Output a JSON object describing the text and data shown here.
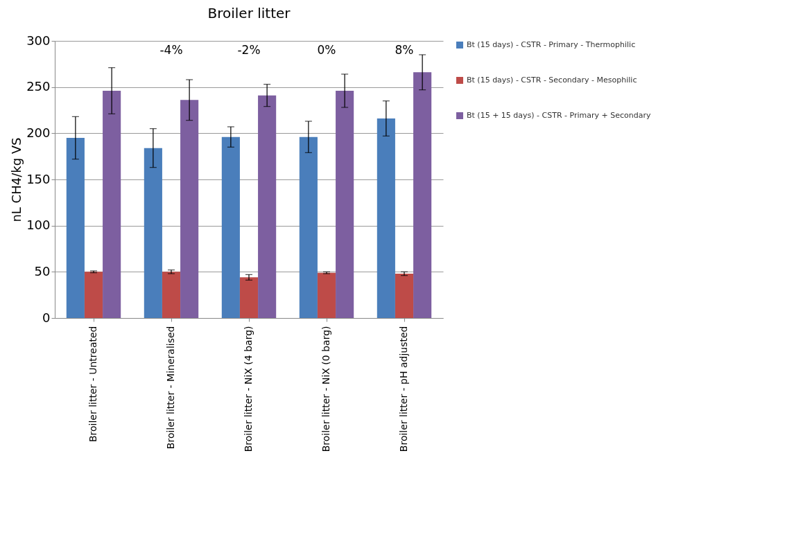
{
  "chart_data": {
    "type": "bar",
    "title": "Broiler litter",
    "ylabel": "nL CH4/kg VS",
    "categories": [
      "Broiler litter - Untreated",
      "Broiler litter - Mineralised",
      "Broiler litter - NiX (4 barg)",
      "Broiler litter - NiX (0 barg)",
      "Broiler litter - pH adjusted"
    ],
    "series": [
      {
        "name": "Bt (15 days) - CSTR - Primary - Thermophilic",
        "color": "#4a7ebb",
        "values": [
          195,
          184,
          196,
          196,
          216
        ],
        "errors": [
          23,
          21,
          11,
          17,
          19
        ]
      },
      {
        "name": "Bt (15 days) - CSTR - Secondary - Mesophilic",
        "color": "#be4b48",
        "values": [
          50,
          50,
          44,
          49,
          48
        ],
        "errors": [
          1,
          2,
          3,
          1,
          2
        ]
      },
      {
        "name": "Bt (15 + 15 days) - CSTR - Primary + Secondary",
        "color": "#7d5fa0",
        "values": [
          246,
          236,
          241,
          246,
          266
        ],
        "errors": [
          25,
          22,
          12,
          18,
          19
        ]
      }
    ],
    "annotations": [
      "-4%",
      "-2%",
      "0%",
      "8%"
    ],
    "ylim": [
      0,
      300
    ],
    "yticks": [
      0,
      50,
      100,
      150,
      200,
      250,
      300
    ],
    "grid": "y",
    "legend": "right"
  }
}
